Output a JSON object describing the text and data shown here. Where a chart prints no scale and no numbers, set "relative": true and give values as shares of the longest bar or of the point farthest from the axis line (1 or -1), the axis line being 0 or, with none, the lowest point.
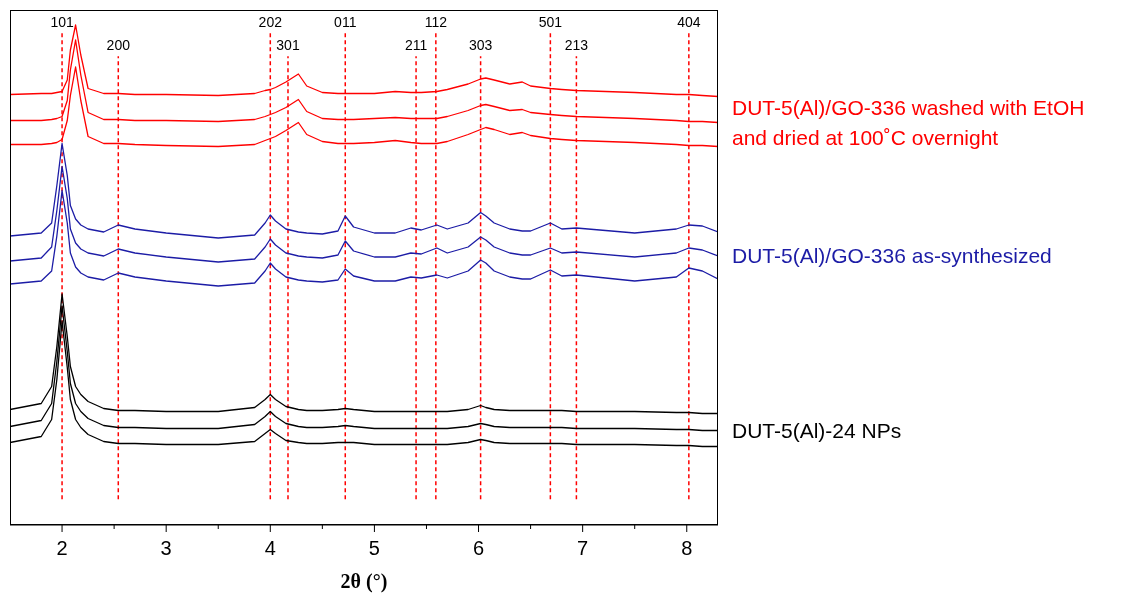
{
  "chart_data": {
    "type": "line",
    "relative": true,
    "xlabel": "2θ (°)",
    "xlim": [
      1.5,
      8.3
    ],
    "xticks": [
      2,
      {
        "value": 2.5,
        "label": null
      },
      3,
      {
        "value": 3.5,
        "label": null
      },
      4,
      {
        "value": 4.5,
        "label": null
      },
      5,
      {
        "value": 5.5,
        "label": null
      },
      6,
      {
        "value": 6.5,
        "label": null
      },
      7,
      {
        "value": 7.5,
        "label": null
      },
      8
    ],
    "grid": false,
    "legend": false,
    "marker": "none",
    "line_style": "solid",
    "x": [
      1.5,
      1.8,
      1.9,
      1.95,
      2.0,
      2.05,
      2.08,
      2.13,
      2.18,
      2.25,
      2.4,
      2.54,
      2.7,
      3.0,
      3.5,
      3.85,
      3.95,
      4.0,
      4.05,
      4.15,
      4.27,
      4.35,
      4.5,
      4.65,
      4.72,
      4.8,
      5.0,
      5.2,
      5.35,
      5.45,
      5.6,
      5.7,
      5.9,
      6.02,
      6.07,
      6.15,
      6.3,
      6.42,
      6.5,
      6.69,
      6.8,
      6.94,
      7.5,
      7.9,
      8.02,
      8.15,
      8.3
    ],
    "series": [
      {
        "color": "#ff0000",
        "values": [
          0.861,
          0.863,
          0.863,
          0.865,
          0.867,
          0.89,
          0.95,
          1.0,
          0.94,
          0.873,
          0.863,
          0.863,
          0.861,
          0.861,
          0.859,
          0.863,
          0.869,
          0.871,
          0.875,
          0.886,
          0.902,
          0.878,
          0.865,
          0.863,
          0.863,
          0.863,
          0.863,
          0.867,
          0.865,
          0.865,
          0.867,
          0.871,
          0.882,
          0.892,
          0.894,
          0.89,
          0.882,
          0.886,
          0.878,
          0.873,
          0.871,
          0.869,
          0.865,
          0.861,
          0.861,
          0.859,
          0.857
        ]
      },
      {
        "name": "DUT-5(Al)/GO-336 washed with EtOH and dried at 100˚C overnight",
        "color": "#ff0000",
        "values": [
          0.809,
          0.809,
          0.811,
          0.813,
          0.817,
          0.849,
          0.91,
          0.97,
          0.9,
          0.825,
          0.811,
          0.811,
          0.809,
          0.809,
          0.807,
          0.811,
          0.817,
          0.821,
          0.825,
          0.835,
          0.851,
          0.827,
          0.813,
          0.811,
          0.811,
          0.811,
          0.813,
          0.815,
          0.813,
          0.813,
          0.813,
          0.817,
          0.829,
          0.839,
          0.841,
          0.837,
          0.829,
          0.831,
          0.825,
          0.821,
          0.819,
          0.817,
          0.813,
          0.809,
          0.807,
          0.807,
          0.805
        ]
      },
      {
        "color": "#ff0000",
        "values": [
          0.761,
          0.761,
          0.763,
          0.765,
          0.771,
          0.809,
          0.859,
          0.916,
          0.849,
          0.777,
          0.763,
          0.763,
          0.761,
          0.759,
          0.757,
          0.761,
          0.769,
          0.773,
          0.777,
          0.789,
          0.805,
          0.781,
          0.767,
          0.763,
          0.763,
          0.763,
          0.765,
          0.769,
          0.765,
          0.763,
          0.763,
          0.767,
          0.781,
          0.791,
          0.795,
          0.791,
          0.781,
          0.785,
          0.779,
          0.773,
          0.771,
          0.769,
          0.765,
          0.761,
          0.759,
          0.759,
          0.757
        ]
      },
      {
        "color": "#1c1ca6",
        "values": [
          0.578,
          0.584,
          0.604,
          0.679,
          0.763,
          0.699,
          0.639,
          0.612,
          0.6,
          0.592,
          0.586,
          0.6,
          0.592,
          0.584,
          0.574,
          0.58,
          0.604,
          0.62,
          0.608,
          0.592,
          0.586,
          0.584,
          0.582,
          0.588,
          0.618,
          0.596,
          0.584,
          0.584,
          0.594,
          0.59,
          0.6,
          0.592,
          0.604,
          0.625,
          0.618,
          0.604,
          0.592,
          0.588,
          0.588,
          0.604,
          0.592,
          0.594,
          0.584,
          0.592,
          0.6,
          0.598,
          0.586
        ]
      },
      {
        "name": "DUT-5(Al)/GO-336 as-synthesized",
        "color": "#1c1ca6",
        "values": [
          0.528,
          0.534,
          0.556,
          0.629,
          0.717,
          0.653,
          0.592,
          0.564,
          0.552,
          0.544,
          0.538,
          0.552,
          0.544,
          0.536,
          0.526,
          0.532,
          0.556,
          0.572,
          0.56,
          0.544,
          0.538,
          0.536,
          0.534,
          0.54,
          0.568,
          0.548,
          0.536,
          0.536,
          0.544,
          0.542,
          0.554,
          0.544,
          0.556,
          0.576,
          0.57,
          0.556,
          0.544,
          0.54,
          0.54,
          0.554,
          0.544,
          0.546,
          0.536,
          0.544,
          0.554,
          0.55,
          0.538
        ]
      },
      {
        "color": "#1c1ca6",
        "values": [
          0.482,
          0.488,
          0.508,
          0.578,
          0.669,
          0.604,
          0.544,
          0.516,
          0.504,
          0.496,
          0.49,
          0.504,
          0.496,
          0.488,
          0.478,
          0.484,
          0.508,
          0.524,
          0.512,
          0.496,
          0.49,
          0.488,
          0.486,
          0.49,
          0.512,
          0.498,
          0.488,
          0.488,
          0.496,
          0.494,
          0.5,
          0.494,
          0.508,
          0.53,
          0.524,
          0.508,
          0.496,
          0.492,
          0.492,
          0.51,
          0.498,
          0.5,
          0.488,
          0.496,
          0.514,
          0.508,
          0.492
        ]
      },
      {
        "color": "#000000",
        "values": [
          0.231,
          0.243,
          0.277,
          0.357,
          0.462,
          0.377,
          0.317,
          0.277,
          0.261,
          0.247,
          0.233,
          0.229,
          0.229,
          0.227,
          0.227,
          0.235,
          0.251,
          0.261,
          0.251,
          0.237,
          0.231,
          0.229,
          0.229,
          0.231,
          0.233,
          0.231,
          0.227,
          0.227,
          0.227,
          0.227,
          0.227,
          0.227,
          0.231,
          0.239,
          0.235,
          0.231,
          0.229,
          0.229,
          0.229,
          0.229,
          0.229,
          0.227,
          0.227,
          0.225,
          0.225,
          0.223,
          0.223
        ]
      },
      {
        "name": "DUT-5(Al)-24 NPs",
        "color": "#000000",
        "values": [
          0.197,
          0.209,
          0.243,
          0.327,
          0.438,
          0.347,
          0.283,
          0.243,
          0.227,
          0.213,
          0.199,
          0.195,
          0.195,
          0.193,
          0.193,
          0.201,
          0.217,
          0.227,
          0.217,
          0.203,
          0.197,
          0.195,
          0.195,
          0.197,
          0.199,
          0.197,
          0.193,
          0.193,
          0.193,
          0.193,
          0.193,
          0.193,
          0.197,
          0.203,
          0.201,
          0.197,
          0.195,
          0.195,
          0.195,
          0.195,
          0.195,
          0.193,
          0.193,
          0.191,
          0.191,
          0.189,
          0.189
        ]
      },
      {
        "color": "#000000",
        "values": [
          0.165,
          0.177,
          0.211,
          0.291,
          0.408,
          0.315,
          0.251,
          0.211,
          0.195,
          0.181,
          0.167,
          0.163,
          0.163,
          0.161,
          0.161,
          0.167,
          0.183,
          0.191,
          0.183,
          0.169,
          0.165,
          0.163,
          0.163,
          0.165,
          0.165,
          0.165,
          0.161,
          0.161,
          0.161,
          0.161,
          0.161,
          0.161,
          0.165,
          0.171,
          0.169,
          0.165,
          0.163,
          0.163,
          0.163,
          0.163,
          0.163,
          0.161,
          0.161,
          0.159,
          0.159,
          0.157,
          0.157
        ]
      }
    ],
    "ref_lines": [
      {
        "axis": "x",
        "value": 2.0,
        "color": "#ff0000",
        "line_style": "dashed"
      },
      {
        "axis": "x",
        "value": 2.54,
        "color": "#ff0000",
        "line_style": "dashed"
      },
      {
        "axis": "x",
        "value": 4.0,
        "color": "#ff0000",
        "line_style": "dashed"
      },
      {
        "axis": "x",
        "value": 4.17,
        "color": "#ff0000",
        "line_style": "dashed"
      },
      {
        "axis": "x",
        "value": 4.72,
        "color": "#ff0000",
        "line_style": "dashed"
      },
      {
        "axis": "x",
        "value": 5.4,
        "color": "#ff0000",
        "line_style": "dashed"
      },
      {
        "axis": "x",
        "value": 5.59,
        "color": "#ff0000",
        "line_style": "dashed"
      },
      {
        "axis": "x",
        "value": 6.02,
        "color": "#ff0000",
        "line_style": "dashed"
      },
      {
        "axis": "x",
        "value": 6.69,
        "color": "#ff0000",
        "line_style": "dashed"
      },
      {
        "axis": "x",
        "value": 6.94,
        "color": "#ff0000",
        "line_style": "dashed"
      },
      {
        "axis": "x",
        "value": 8.02,
        "color": "#ff0000",
        "line_style": "dashed"
      }
    ],
    "annotations": [
      "101",
      "200",
      "202",
      "301",
      "011",
      "211",
      "112",
      "303",
      "501",
      "213",
      "404"
    ]
  }
}
